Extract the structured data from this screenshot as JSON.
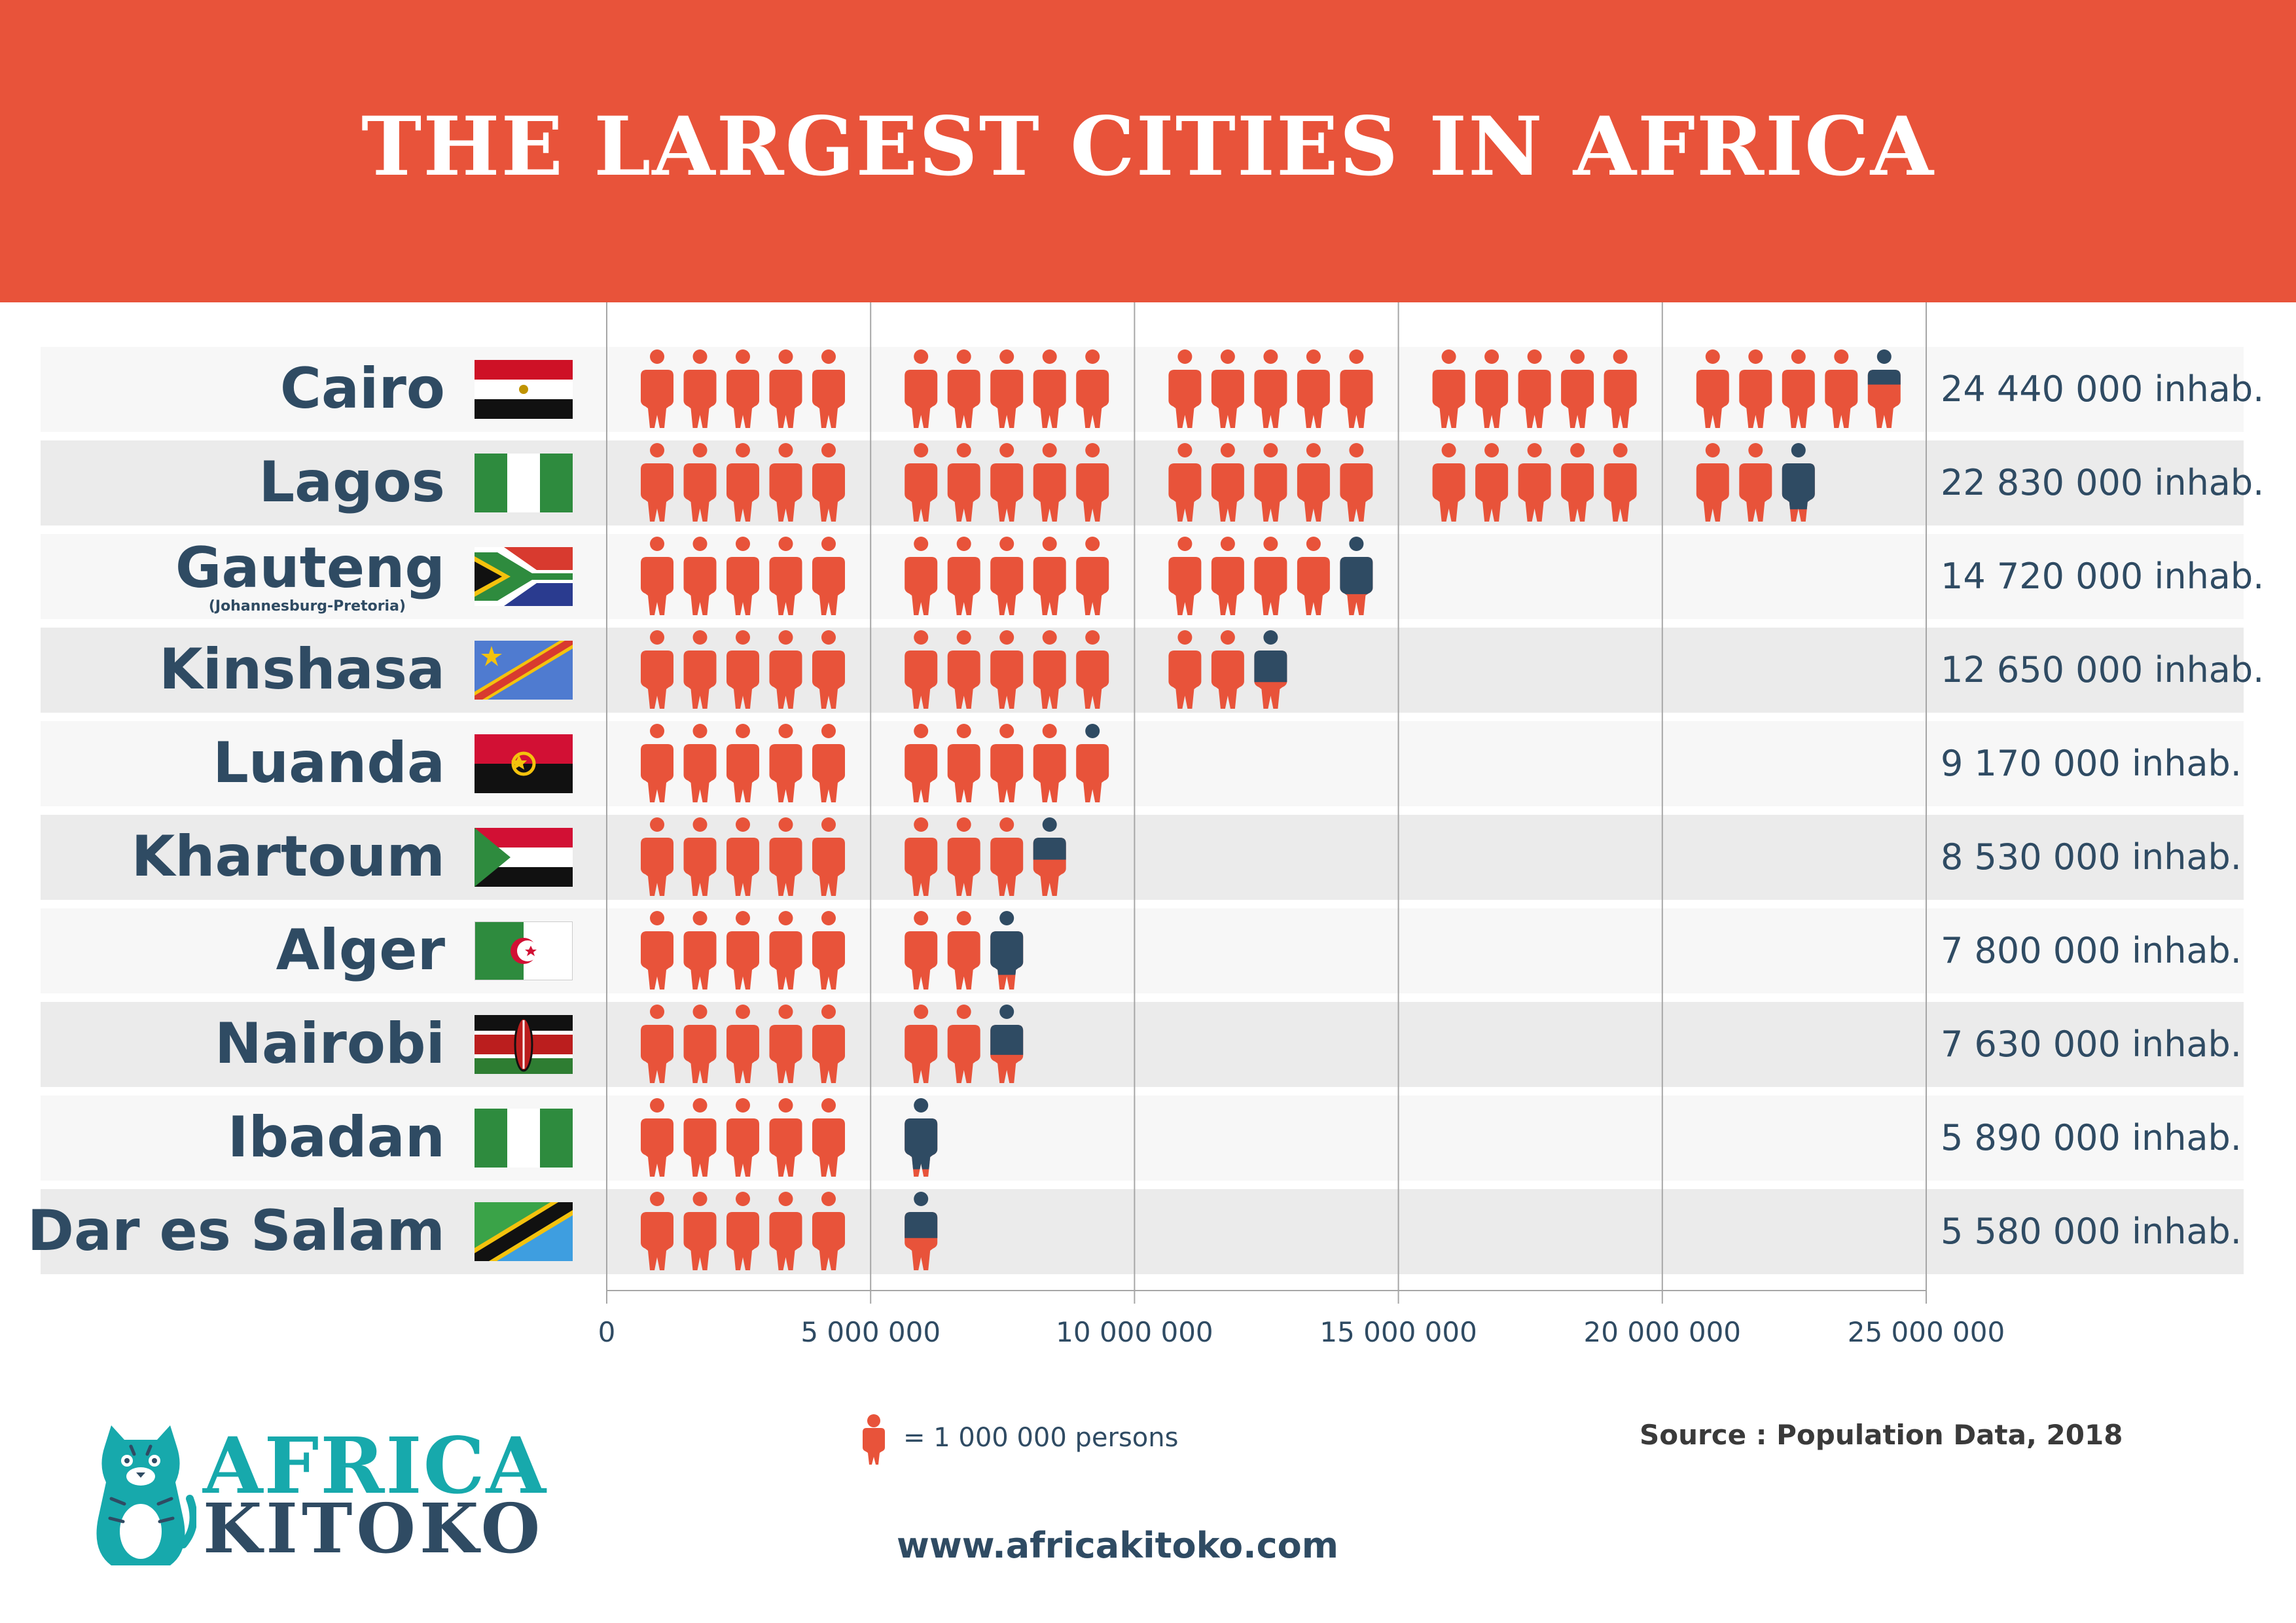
{
  "header": {
    "title": "THE LARGEST CITIES IN AFRICA"
  },
  "chart_data": {
    "type": "bar",
    "title": "THE LARGEST CITIES IN AFRICA",
    "xlim": [
      0,
      25000000
    ],
    "x_ticks": [
      0,
      5000000,
      10000000,
      15000000,
      20000000,
      25000000
    ],
    "x_tick_labels": [
      "0",
      "5 000 000",
      "10 000 000",
      "15 000 000",
      "20 000 000",
      "25 000 000"
    ],
    "unit_per_icon": 1000000,
    "rows": [
      {
        "city": "Cairo",
        "flag": "egypt-flag",
        "value": 24440000,
        "label": "24 440 000 inhab."
      },
      {
        "city": "Lagos",
        "flag": "nigeria-flag",
        "value": 22830000,
        "label": "22 830 000 inhab."
      },
      {
        "city": "Gauteng",
        "subtitle": "(Johannesburg-Pretoria)",
        "flag": "south-africa-flag",
        "value": 14720000,
        "label": "14 720 000 inhab."
      },
      {
        "city": "Kinshasa",
        "flag": "dr-congo-flag",
        "value": 12650000,
        "label": "12 650 000 inhab."
      },
      {
        "city": "Luanda",
        "flag": "angola-flag",
        "value": 9170000,
        "label": "9 170 000 inhab."
      },
      {
        "city": "Khartoum",
        "flag": "sudan-flag",
        "value": 8530000,
        "label": "8 530 000 inhab."
      },
      {
        "city": "Alger",
        "flag": "algeria-flag",
        "value": 7800000,
        "label": "7 800 000 inhab."
      },
      {
        "city": "Nairobi",
        "flag": "kenya-flag",
        "value": 7630000,
        "label": "7 630 000 inhab."
      },
      {
        "city": "Ibadan",
        "flag": "nigeria-flag",
        "value": 5890000,
        "label": "5 890 000 inhab."
      },
      {
        "city": "Dar es Salam",
        "flag": "tanzania-flag",
        "value": 5580000,
        "label": "5 580 000 inhab."
      }
    ],
    "colors": {
      "person": "#e8533a",
      "partial": "#2f4b63",
      "text": "#2f4b63",
      "row_light": "#f7f7f7",
      "row_dark": "#ebebeb",
      "banner": "#e8533a"
    }
  },
  "legend": {
    "text": "= 1 000 000 persons",
    "icon": "person-icon"
  },
  "footer": {
    "brand_line1": "AFRICA",
    "brand_line2": "KITOKO",
    "logo_icon": "tiger-mascot-icon",
    "source": "Source : Population Data, 2018",
    "website": "www.africakitoko.com"
  }
}
